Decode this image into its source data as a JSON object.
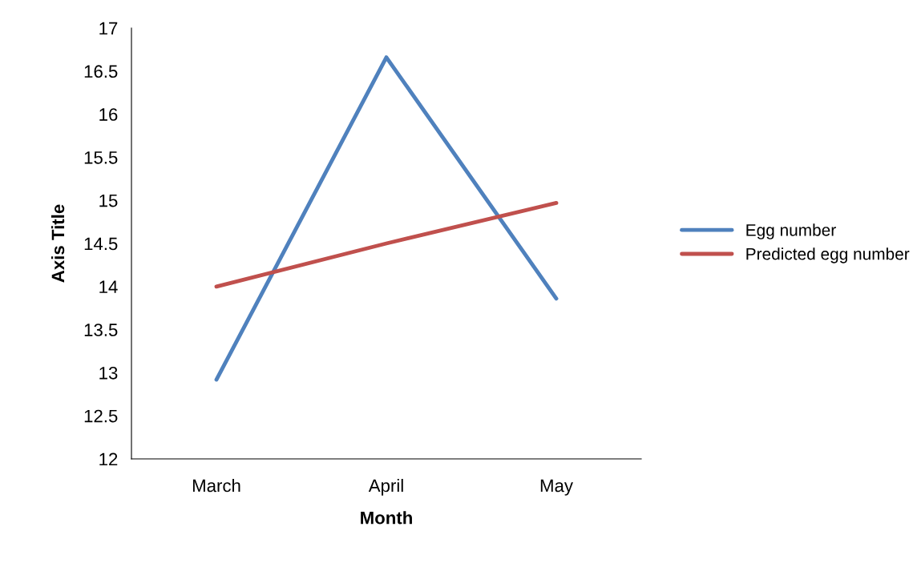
{
  "chart_data": {
    "type": "line",
    "xlabel": "Month",
    "ylabel": "Axis Title",
    "categories": [
      "March",
      "April",
      "May"
    ],
    "series": [
      {
        "name": "Egg number",
        "color": "#4f81bd",
        "values": [
          12.92,
          16.66,
          13.86
        ]
      },
      {
        "name": "Predicted egg number",
        "color": "#c0504d",
        "values": [
          14.0,
          14.5,
          14.97
        ]
      }
    ],
    "ylim": [
      12,
      17
    ],
    "yticks": [
      12,
      12.5,
      13,
      13.5,
      14,
      14.5,
      15,
      15.5,
      16,
      16.5,
      17
    ],
    "grid": false,
    "legend": "right",
    "marker": "none"
  }
}
